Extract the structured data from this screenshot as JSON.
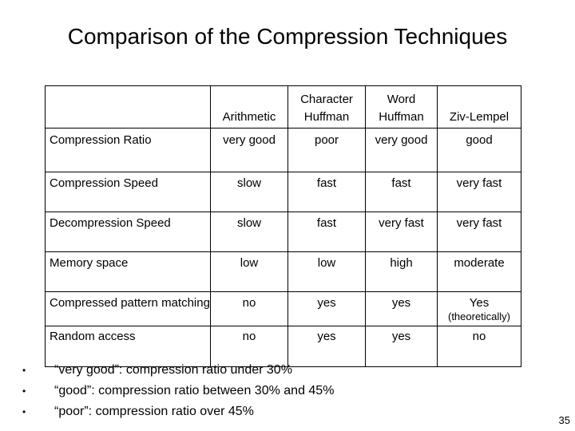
{
  "title": "Comparison of the Compression Techniques",
  "table": {
    "headers": [
      "",
      "Arithmetic",
      "Character Huffman",
      "Word Huffman",
      "Ziv-Lempel"
    ],
    "header_lines": [
      [
        ""
      ],
      [
        "Arithmetic"
      ],
      [
        "Character",
        "Huffman"
      ],
      [
        "Word",
        "Huffman"
      ],
      [
        "Ziv-Lempel"
      ]
    ],
    "rows": [
      {
        "label": "Compression Ratio",
        "cells": [
          "very good",
          "poor",
          "very good",
          "good"
        ]
      },
      {
        "label": "Compression Speed",
        "cells": [
          "slow",
          "fast",
          "fast",
          "very fast"
        ]
      },
      {
        "label": "Decompression Speed",
        "cells": [
          "slow",
          "fast",
          "very fast",
          "very fast"
        ]
      },
      {
        "label": "Memory space",
        "cells": [
          "low",
          "low",
          "high",
          "moderate"
        ]
      },
      {
        "label": "Compressed pattern matching",
        "cells": [
          "no",
          "yes",
          "yes",
          "Yes"
        ],
        "last_note": "(theoretically)"
      },
      {
        "label": "Random access",
        "cells": [
          "no",
          "yes",
          "yes",
          "no"
        ]
      }
    ]
  },
  "notes": [
    "“very good”: compression ratio under 30%",
    "“good”: compression ratio between 30% and 45%",
    "“poor”: compression ratio over 45%"
  ],
  "bullet_symbol": "•",
  "page_number": "35"
}
